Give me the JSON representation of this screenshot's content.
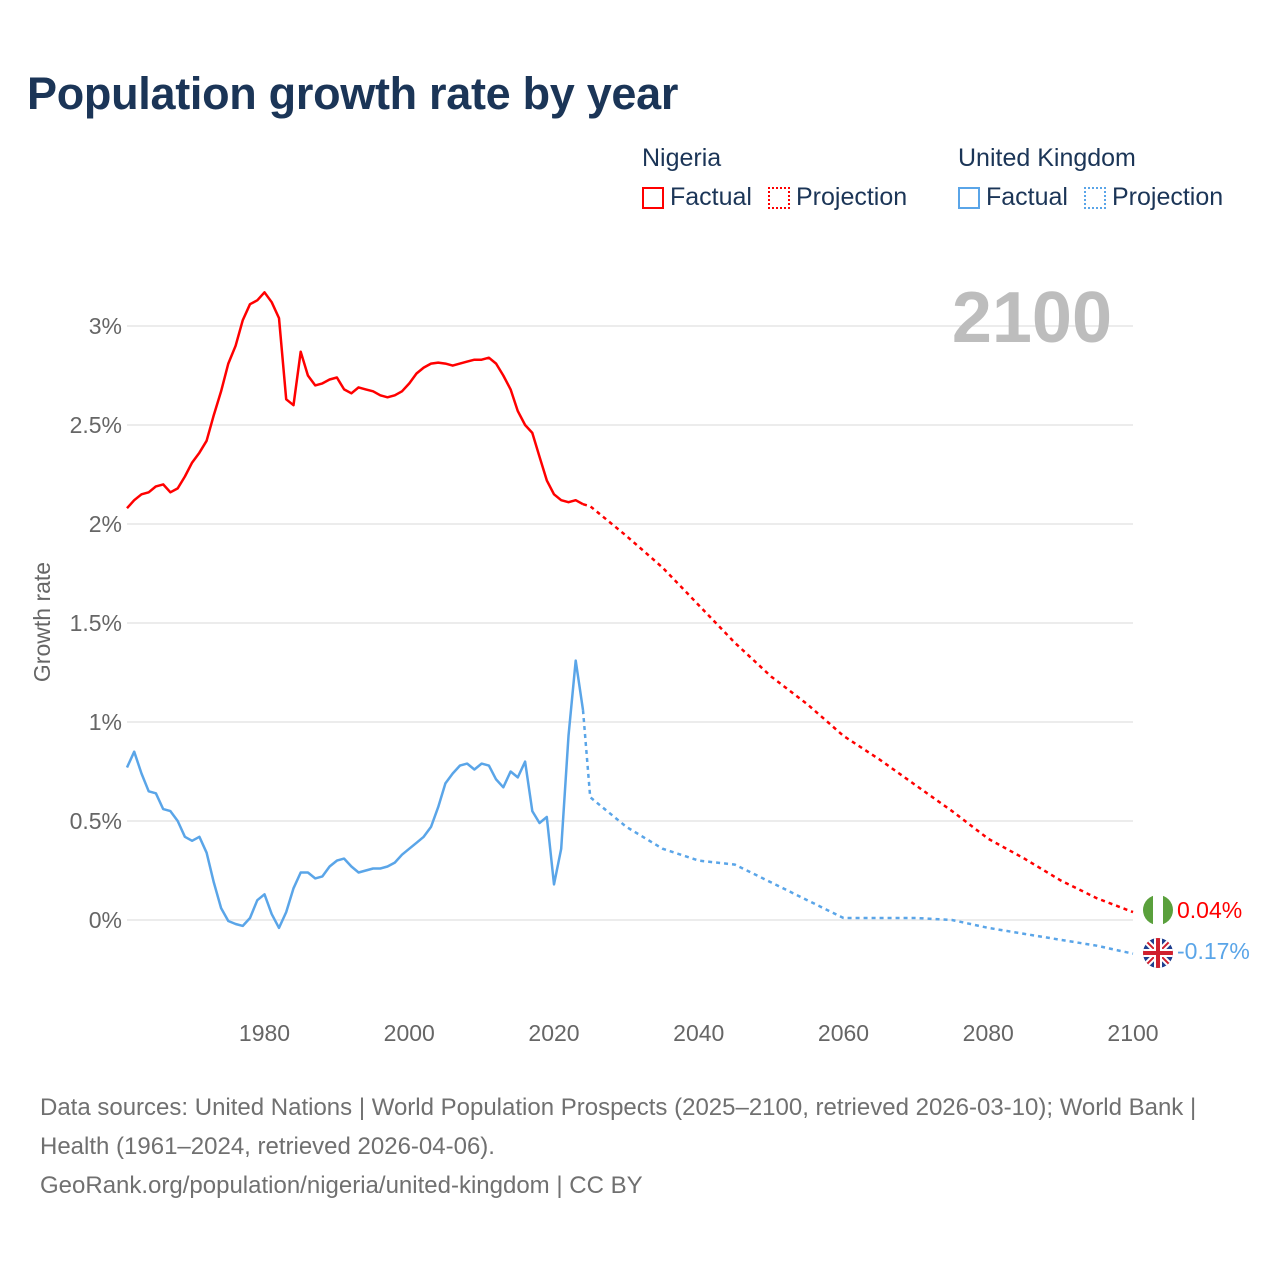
{
  "title": "Population growth rate by year",
  "legend": {
    "groups": [
      {
        "name": "Nigeria",
        "factual": "Factual",
        "projection": "Projection",
        "color": "#ff0000"
      },
      {
        "name": "United Kingdom",
        "factual": "Factual",
        "projection": "Projection",
        "color": "#5aa5e8"
      }
    ]
  },
  "year_label": "2100",
  "sources": {
    "line1": "Data sources: United Nations | World Population Prospects (2025–2100, retrieved 2026-03-10); World Bank | Health (1961–2024, retrieved 2026-04-06).",
    "line2": "GeoRank.org/population/nigeria/united-kingdom | CC BY"
  },
  "chart_data": {
    "type": "line",
    "title": "Population growth rate by year",
    "xlabel": "",
    "ylabel": "Growth rate",
    "xlim": [
      1961,
      2100
    ],
    "ylim": [
      -0.3,
      3.3
    ],
    "x_ticks": [
      1980,
      2000,
      2020,
      2040,
      2060,
      2080,
      2100
    ],
    "y_ticks": [
      0,
      0.5,
      1,
      1.5,
      2,
      2.5,
      3
    ],
    "y_tick_labels": [
      "0%",
      "0.5%",
      "1%",
      "1.5%",
      "2%",
      "2.5%",
      "3%"
    ],
    "grid": true,
    "legend_position": "top-right",
    "series": [
      {
        "name": "Nigeria",
        "color": "#ff0000",
        "end_label": "0.04%",
        "factual": {
          "x": [
            1961,
            1962,
            1963,
            1964,
            1965,
            1966,
            1967,
            1968,
            1969,
            1970,
            1971,
            1972,
            1973,
            1974,
            1975,
            1976,
            1977,
            1978,
            1979,
            1980,
            1981,
            1982,
            1983,
            1984,
            1985,
            1986,
            1987,
            1988,
            1989,
            1990,
            1991,
            1992,
            1993,
            1994,
            1995,
            1996,
            1997,
            1998,
            1999,
            2000,
            2001,
            2002,
            2003,
            2004,
            2005,
            2006,
            2007,
            2008,
            2009,
            2010,
            2011,
            2012,
            2013,
            2014,
            2015,
            2016,
            2017,
            2018,
            2019,
            2020,
            2021,
            2022,
            2023,
            2024
          ],
          "y": [
            2.08,
            2.12,
            2.15,
            2.16,
            2.19,
            2.2,
            2.16,
            2.18,
            2.24,
            2.31,
            2.36,
            2.42,
            2.55,
            2.67,
            2.81,
            2.9,
            3.03,
            3.11,
            3.13,
            3.17,
            3.12,
            3.04,
            2.63,
            2.6,
            2.87,
            2.75,
            2.7,
            2.71,
            2.73,
            2.74,
            2.68,
            2.66,
            2.69,
            2.68,
            2.67,
            2.65,
            2.64,
            2.65,
            2.67,
            2.71,
            2.76,
            2.79,
            2.81,
            2.815,
            2.81,
            2.8,
            2.81,
            2.82,
            2.83,
            2.83,
            2.84,
            2.81,
            2.75,
            2.68,
            2.57,
            2.5,
            2.46,
            2.34,
            2.22,
            2.15,
            2.12,
            2.11,
            2.12,
            2.1
          ]
        },
        "projection": {
          "x": [
            2024,
            2025,
            2030,
            2035,
            2040,
            2045,
            2050,
            2055,
            2060,
            2065,
            2070,
            2075,
            2080,
            2085,
            2090,
            2095,
            2100
          ],
          "y": [
            2.1,
            2.09,
            1.94,
            1.78,
            1.59,
            1.4,
            1.23,
            1.09,
            0.93,
            0.81,
            0.68,
            0.55,
            0.41,
            0.31,
            0.2,
            0.11,
            0.04
          ]
        }
      },
      {
        "name": "United Kingdom",
        "color": "#5aa5e8",
        "end_label": "-0.17%",
        "factual": {
          "x": [
            1961,
            1962,
            1963,
            1964,
            1965,
            1966,
            1967,
            1968,
            1969,
            1970,
            1971,
            1972,
            1973,
            1974,
            1975,
            1976,
            1977,
            1978,
            1979,
            1980,
            1981,
            1982,
            1983,
            1984,
            1985,
            1986,
            1987,
            1988,
            1989,
            1990,
            1991,
            1992,
            1993,
            1994,
            1995,
            1996,
            1997,
            1998,
            1999,
            2000,
            2001,
            2002,
            2003,
            2004,
            2005,
            2006,
            2007,
            2008,
            2009,
            2010,
            2011,
            2012,
            2013,
            2014,
            2015,
            2016,
            2017,
            2018,
            2019,
            2020,
            2021,
            2022,
            2023,
            2024
          ],
          "y": [
            0.77,
            0.85,
            0.74,
            0.65,
            0.64,
            0.56,
            0.55,
            0.5,
            0.42,
            0.4,
            0.42,
            0.34,
            0.19,
            0.06,
            -0.005,
            -0.02,
            -0.03,
            0.01,
            0.1,
            0.13,
            0.03,
            -0.04,
            0.04,
            0.16,
            0.24,
            0.24,
            0.21,
            0.22,
            0.27,
            0.3,
            0.31,
            0.27,
            0.24,
            0.25,
            0.26,
            0.26,
            0.27,
            0.29,
            0.33,
            0.36,
            0.39,
            0.42,
            0.47,
            0.57,
            0.69,
            0.74,
            0.78,
            0.79,
            0.76,
            0.79,
            0.78,
            0.71,
            0.67,
            0.75,
            0.72,
            0.8,
            0.55,
            0.49,
            0.52,
            0.18,
            0.36,
            0.93,
            1.31,
            1.06
          ]
        },
        "projection": {
          "x": [
            2024,
            2025,
            2030,
            2035,
            2040,
            2045,
            2050,
            2055,
            2060,
            2065,
            2070,
            2075,
            2080,
            2085,
            2090,
            2095,
            2100
          ],
          "y": [
            1.06,
            0.62,
            0.47,
            0.36,
            0.3,
            0.28,
            0.19,
            0.1,
            0.01,
            0.01,
            0.01,
            0.0,
            -0.04,
            -0.07,
            -0.1,
            -0.13,
            -0.17
          ]
        }
      }
    ]
  }
}
